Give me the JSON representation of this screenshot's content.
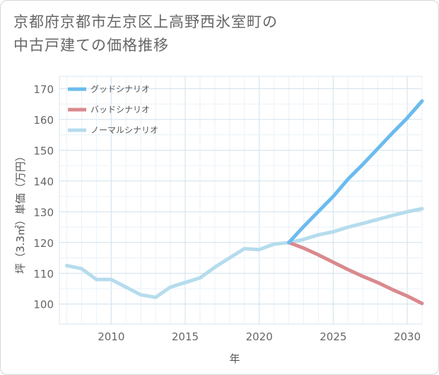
{
  "title_lines": [
    "京都府京都市左京区上高野西氷室町の",
    "中古戸建ての価格推移"
  ],
  "chart_data": {
    "type": "line",
    "xlabel": "年",
    "ylabel": "坪（3.3㎡）単価（万円）",
    "xlim": [
      2006.5,
      2031
    ],
    "ylim": [
      93.5,
      174
    ],
    "x_ticks": [
      2010,
      2015,
      2020,
      2025,
      2030
    ],
    "y_ticks": [
      100,
      110,
      120,
      130,
      140,
      150,
      160,
      170
    ],
    "grid": true,
    "legend_position": "top-left",
    "series": [
      {
        "name": "グッドシナリオ",
        "color": "#6bbbee",
        "points": [
          [
            2022,
            120
          ],
          [
            2023,
            125.2
          ],
          [
            2024,
            130.1
          ],
          [
            2025,
            135
          ],
          [
            2026,
            140.6
          ],
          [
            2027,
            145.4
          ],
          [
            2028,
            150.5
          ],
          [
            2029,
            155.6
          ],
          [
            2030,
            160.5
          ],
          [
            2031,
            166
          ]
        ]
      },
      {
        "name": "バッドシナリオ",
        "color": "#d98a8e",
        "points": [
          [
            2022,
            120
          ],
          [
            2023,
            118.2
          ],
          [
            2024,
            116
          ],
          [
            2025,
            113.6
          ],
          [
            2026,
            111.2
          ],
          [
            2027,
            109
          ],
          [
            2028,
            107
          ],
          [
            2029,
            104.7
          ],
          [
            2030,
            102.6
          ],
          [
            2031,
            100.2
          ]
        ]
      },
      {
        "name": "ノーマルシナリオ",
        "color": "#b5dced",
        "points": [
          [
            2007,
            112.5
          ],
          [
            2008,
            111.5
          ],
          [
            2009,
            108
          ],
          [
            2010,
            108
          ],
          [
            2011,
            105.5
          ],
          [
            2012,
            103
          ],
          [
            2013,
            102.2
          ],
          [
            2014,
            105.5
          ],
          [
            2015,
            107
          ],
          [
            2016,
            108.5
          ],
          [
            2017,
            112
          ],
          [
            2018,
            115
          ],
          [
            2019,
            118
          ],
          [
            2020,
            117.7
          ],
          [
            2021,
            119.5
          ],
          [
            2022,
            120
          ],
          [
            2023,
            121
          ],
          [
            2024,
            122.5
          ],
          [
            2025,
            123.5
          ],
          [
            2026,
            125
          ],
          [
            2027,
            126.2
          ],
          [
            2028,
            127.5
          ],
          [
            2029,
            128.8
          ],
          [
            2030,
            130
          ],
          [
            2031,
            131
          ]
        ]
      }
    ]
  }
}
